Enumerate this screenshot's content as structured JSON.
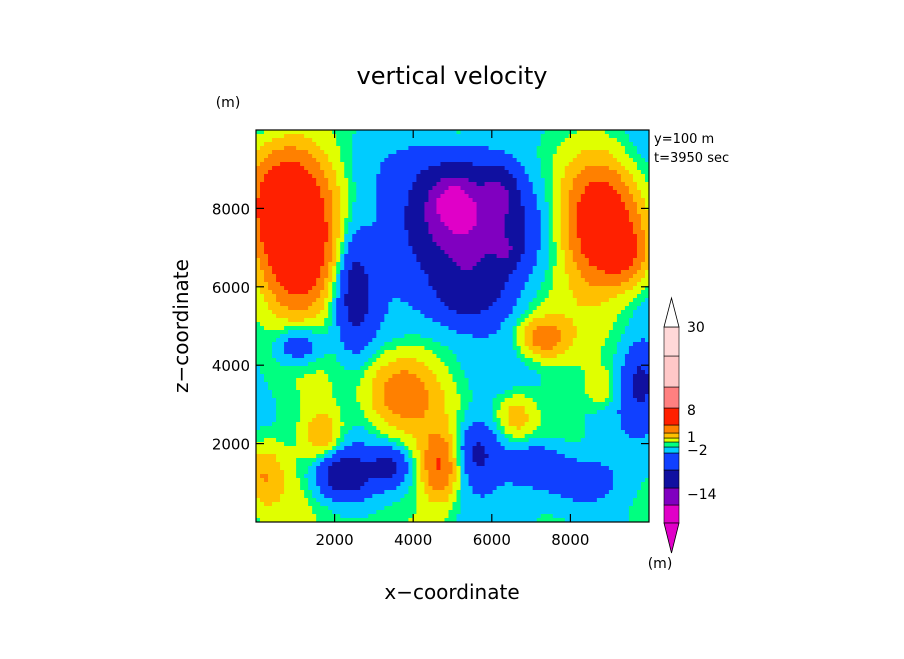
{
  "chart_data": {
    "type": "heatmap",
    "title": "vertical velocity",
    "xlabel": "x−coordinate",
    "ylabel": "z−coordinate",
    "x_unit": "(m)",
    "y_unit": "(m)",
    "colorbar_unit": "(m)",
    "annotations": [
      "y=100 m",
      "t=3950 sec"
    ],
    "xlim": [
      0,
      10000
    ],
    "ylim": [
      0,
      10000
    ],
    "xticks": [
      2000,
      4000,
      6000,
      8000
    ],
    "yticks": [
      2000,
      4000,
      6000,
      8000
    ],
    "colorbar": {
      "labels": [
        {
          "text": "30",
          "level": 30
        },
        {
          "text": "8",
          "level": 8
        },
        {
          "text": "1",
          "level": 1
        },
        {
          "text": "−2",
          "level": -2
        },
        {
          "text": "−14",
          "level": -14
        }
      ],
      "colors": [
        "#e000c8",
        "#8000c0",
        "#1010a0",
        "#1040ff",
        "#00ccff",
        "#00ff80",
        "#e0ff00",
        "#ffc000",
        "#ff8000",
        "#ff2000",
        "#ff8080",
        "#ffc8c8",
        "#ffffff"
      ]
    }
  }
}
